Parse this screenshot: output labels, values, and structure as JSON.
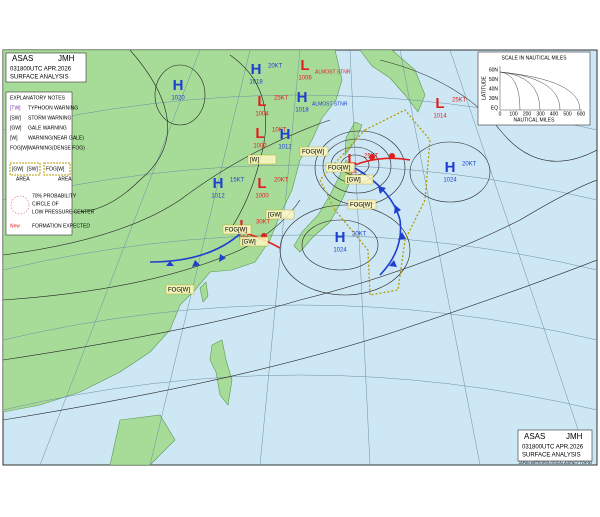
{
  "header": {
    "agency": "ASAS",
    "station": "JMH",
    "datetime": "031800UTC APR.2026",
    "title": "SURFACE ANALYSIS"
  },
  "legend": {
    "title": "EXPLANATORY NOTES",
    "items": [
      {
        "code": "[TW]",
        "label": "TYPHOON WARNING"
      },
      {
        "code": "[SW]",
        "label": "STORM WARNING"
      },
      {
        "code": "[GW]",
        "label": "GALE WARNING"
      },
      {
        "code": "[W]",
        "label": "WARNING(NEAR GALE)"
      },
      {
        "code": "FOG[W]",
        "label": "WARNING(DENSE FOG)"
      }
    ],
    "area_codes": [
      "[GW]",
      "[SW]"
    ],
    "area_label": "AREA",
    "fog_code": "FOG[W]",
    "fog_area_label": "AREA",
    "probability": [
      "70% PROBABILITY",
      "CIRCLE OF",
      "LOW PRESSURE CENTER"
    ],
    "new": "New",
    "new_label": "FORMATION EXPECTED"
  },
  "scale": {
    "title": "SCALE IN NAUTICAL MILES",
    "y_label": "LATITUDE",
    "x_label": "NAUTICAL MILES",
    "y_ticks": [
      "60N",
      "50N",
      "40N",
      "30N",
      "EQ"
    ],
    "x_ticks": [
      "0",
      "100",
      "200",
      "300",
      "400",
      "500",
      "600"
    ]
  },
  "systems": [
    {
      "type": "H",
      "pressure": "1020"
    },
    {
      "type": "H",
      "pressure": "1018",
      "speed": "20KT"
    },
    {
      "type": "L",
      "pressure": "1006",
      "note": "ALMOST STNR"
    },
    {
      "type": "L",
      "pressure": "1004",
      "speed": "25KT"
    },
    {
      "type": "H",
      "pressure": "1018",
      "note": "ALMOST STNR"
    },
    {
      "type": "L",
      "pressure": "1002",
      "speed": "10KT"
    },
    {
      "type": "H",
      "pressure": "1012"
    },
    {
      "type": "L",
      "pressure": "984",
      "speed": "25KT"
    },
    {
      "type": "H",
      "pressure": "1024",
      "speed": "20KT"
    },
    {
      "type": "L",
      "pressure": "1014",
      "speed": "25KT"
    },
    {
      "type": "H",
      "pressure": "1012",
      "speed": "15KT"
    },
    {
      "type": "L",
      "pressure": "1000",
      "speed": "20KT"
    },
    {
      "type": "L",
      "pressure": "994",
      "speed": "30KT"
    },
    {
      "type": "H",
      "pressure": "1024",
      "speed": "20KT"
    }
  ],
  "warnings": [
    "FOG[W]",
    "FOG[W]",
    "FOG[W]",
    "FOG[W]",
    "FOG[W]",
    "[GW]",
    "[GW]",
    "[GW]",
    "[W]"
  ],
  "footer": "JAPAN METEOROLOGICAL AGENCY TOKYO"
}
